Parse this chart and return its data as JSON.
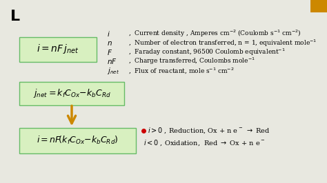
{
  "bg_color": "#e8e8e0",
  "box_facecolor": "#d8f0c0",
  "box_edgecolor": "#66bb66",
  "arrow_color": "#cc8800",
  "red_dot_color": "#cc0000",
  "corner_color": "#cc8800",
  "box1_formula": "$i = nF\\,j_{net}$",
  "box2_formula": "$j_{net} = k_f C_{Ox}{-}k_b C_{Rd}$",
  "box3_formula": "$i = nF\\!\\left(k_f C_{Ox}{-}k_b C_{Rd}\\right)$",
  "def_symbols": [
    "$i$",
    "$n$",
    "$F$",
    "$nF$",
    "$j_{net}$"
  ],
  "def_texts": [
    ",  Current density , Amperes cm$^{-2}$ (Coulomb s$^{-1}$ cm$^{-2}$)",
    ",  Number of electron transferred, n = 1, equivalent mole$^{-1}$",
    ",  Faraday constant, 96500 Coulomb equivalent$^{-1}$",
    ",  Charge transferred, Coulombs mole$^{-1}$",
    ",  Flux of reactant, mole s$^{-1}$ cm$^{-2}$"
  ],
  "note1": "$i>0$ , Reduction, Ox + n e$^-$ $\\rightarrow$ Red",
  "note2": "$i<0$ , Oxidation,  Red $\\rightarrow$ Ox + n e$^-$"
}
